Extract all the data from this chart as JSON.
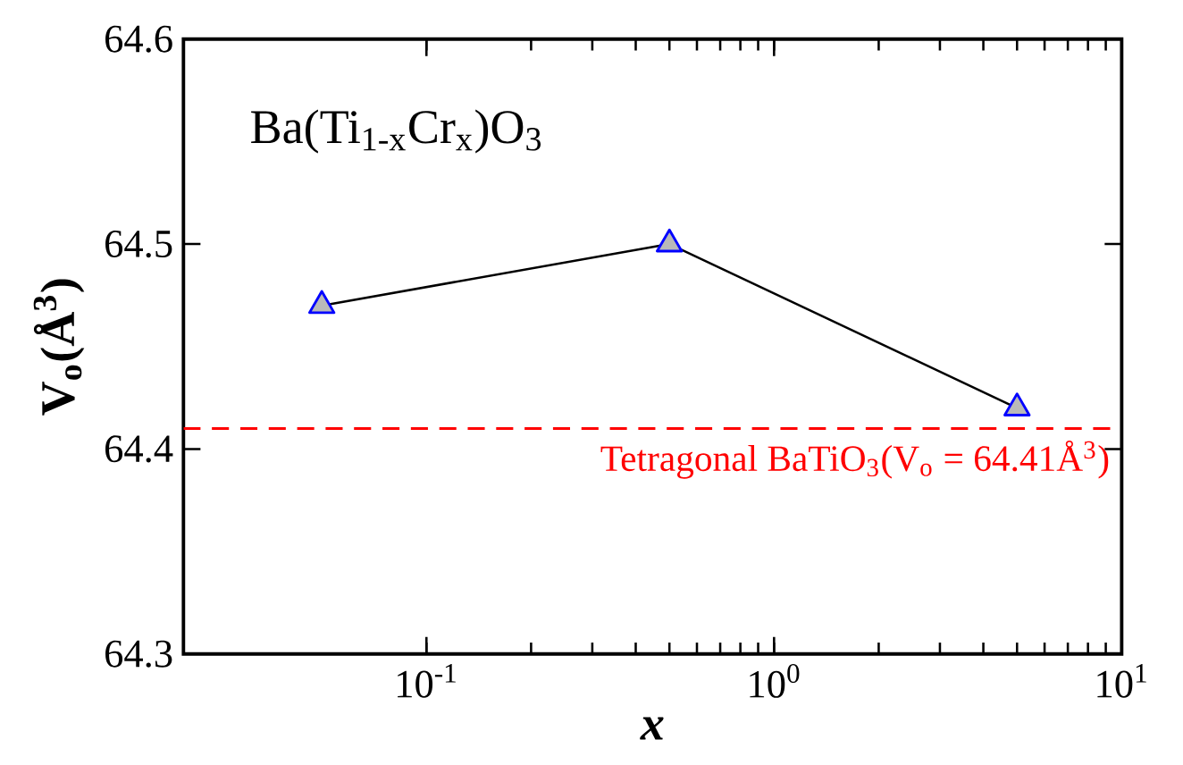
{
  "chart_data": {
    "type": "line",
    "xlabel": "x",
    "ylabel": "V$_{o}$(Å$^{3}$)",
    "x": [
      0.05,
      0.5,
      5
    ],
    "series": [
      {
        "color": "#0000ff",
        "values": [
          64.47,
          64.5,
          64.42
        ]
      }
    ],
    "log": "x",
    "xlim": [
      0.02,
      10
    ],
    "xticks": [
      {
        "value": 0.1,
        "label": "10$^{-1}$"
      },
      {
        "value": 1,
        "label": "10$^{0}$"
      },
      {
        "value": 10,
        "label": "10$^{1}$"
      }
    ],
    "ylim": [
      64.3,
      64.6
    ],
    "yticks": [
      64.3,
      64.4,
      64.5,
      64.6
    ],
    "marker": "triangle",
    "line_style": "solid",
    "ref_lines": [
      {
        "axis": "y",
        "value": 64.41,
        "label": "Tetragonal BaTiO$_{3}$(V$_{o}$ = 64.41Å$^{3}$)",
        "color": "#ff0000",
        "line_style": "dashed"
      }
    ],
    "annotations": [
      "Ba(Ti$_{1-x}$Cr$_{x}$)O$_{3}$"
    ]
  }
}
